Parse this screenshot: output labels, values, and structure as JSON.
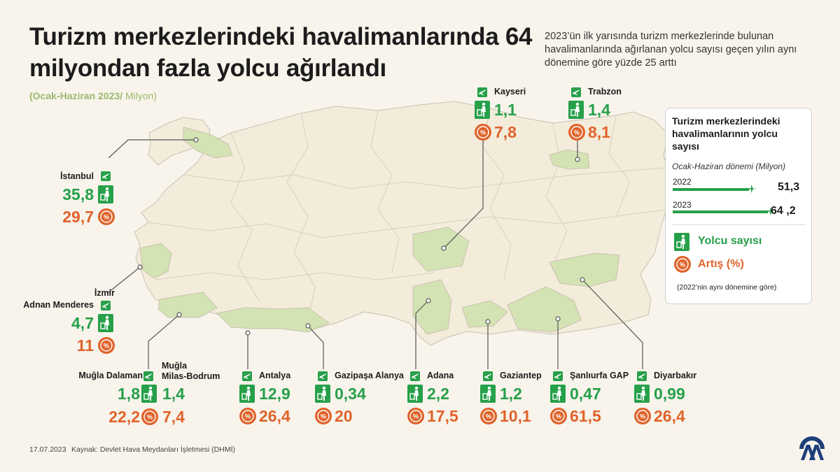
{
  "title": "Turizm merkezlerindeki havalimanlarında 64 milyondan fazla yolcu ağırlandı",
  "intro": "2023’ün ilk yarısında turizm merkezlerinde bulunan havalimanlarında ağırlanan yolcu sayısı geçen yılın aynı dönemine göre yüzde 25 arttı",
  "period": {
    "label": "(Ocak-Haziran 2023/",
    "unit": " Milyon)"
  },
  "colors": {
    "passenger": "#27a04a",
    "increase": "#e0632a",
    "highlight_region": "#d4e3b3",
    "map_land": "#f3ecdb",
    "map_border": "#c9c1b0"
  },
  "airports": [
    {
      "name": "İstanbul",
      "passengers": "35,8",
      "increase": "29,7"
    },
    {
      "name": "İzmir Adnan Menderes",
      "name_lines": [
        "İzmir",
        "Adnan Menderes"
      ],
      "passengers": "4,7",
      "increase": "11"
    },
    {
      "name": "Muğla Dalaman",
      "passengers": "1,8",
      "increase": "22,2"
    },
    {
      "name": "Muğla Milas-Bodrum",
      "name_lines": [
        "Muğla",
        "Milas-Bodrum"
      ],
      "passengers": "1,4",
      "increase": "7,4"
    },
    {
      "name": "Antalya",
      "passengers": "12,9",
      "increase": "26,4"
    },
    {
      "name": "Gazipaşa Alanya",
      "passengers": "0,34",
      "increase": "20"
    },
    {
      "name": "Adana",
      "passengers": "2,2",
      "increase": "17,5"
    },
    {
      "name": "Gaziantep",
      "passengers": "1,2",
      "increase": "10,1"
    },
    {
      "name": "Şanlıurfa GAP",
      "passengers": "0,47",
      "increase": "61,5"
    },
    {
      "name": "Diyarbakır",
      "passengers": "0,99",
      "increase": "26,4"
    },
    {
      "name": "Kayseri",
      "passengers": "1,1",
      "increase": "7,8"
    },
    {
      "name": "Trabzon",
      "passengers": "1,4",
      "increase": "8,1"
    }
  ],
  "legend": {
    "title": "Turizm merkezlerindeki havalimanlarının yolcu sayısı",
    "subtitle": "Ocak-Haziran dönemi (Milyon)",
    "bars": [
      {
        "year": "2022",
        "value": 51.3,
        "label": "51,3"
      },
      {
        "year": "2023",
        "value": 64.2,
        "label": "64 ,2"
      }
    ],
    "passenger_label": "Yolcu sayısı",
    "increase_label": "Artış (%)",
    "note": "(2022’nin aynı dönemine göre)"
  },
  "footer": {
    "date": "17.07.2023",
    "source": "Kaynak: Devlet Hava Meydanları İşletmesi (DHMİ)"
  },
  "icons": [
    "airplane-icon",
    "passenger-luggage-icon",
    "percent-up-icon",
    "aa-logo-icon"
  ]
}
